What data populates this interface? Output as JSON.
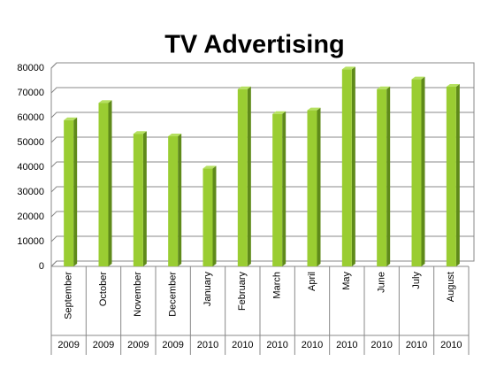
{
  "chart_data": {
    "type": "bar",
    "title": "TV Advertising",
    "categories": [
      "September",
      "October",
      "November",
      "December",
      "January",
      "February",
      "March",
      "April",
      "May",
      "June",
      "July",
      "August"
    ],
    "years": [
      "2009",
      "2009",
      "2009",
      "2009",
      "2010",
      "2010",
      "2010",
      "2010",
      "2010",
      "2010",
      "2010",
      "2010"
    ],
    "values": [
      59000,
      66000,
      53500,
      52500,
      39500,
      71500,
      61500,
      63000,
      79500,
      71500,
      75500,
      72500
    ],
    "color": "#9acd32",
    "ylim": [
      0,
      80000
    ],
    "yticks": [
      0,
      10000,
      20000,
      30000,
      40000,
      50000,
      60000,
      70000,
      80000
    ],
    "grid": true
  }
}
